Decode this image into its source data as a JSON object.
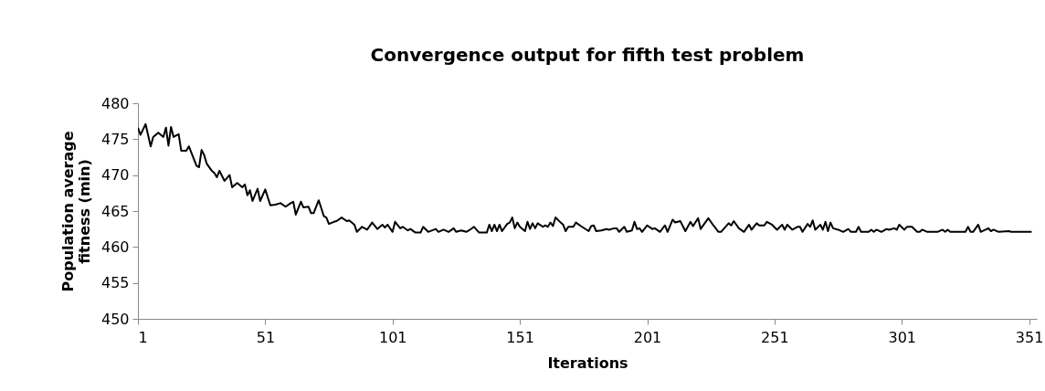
{
  "chart_data": {
    "type": "line",
    "title": "Convergence output for fifth test problem",
    "xlabel": "Iterations",
    "ylabel": "Population average fitness (min)",
    "x": [
      1,
      2,
      4,
      6,
      7,
      9,
      11,
      12,
      13,
      14,
      15,
      17,
      18,
      20,
      21,
      24,
      25,
      26,
      27,
      28,
      30,
      31,
      32,
      33,
      35,
      37,
      38,
      40,
      42,
      43,
      44,
      45,
      46,
      48,
      49,
      51,
      53,
      55,
      57,
      59,
      61,
      62,
      63,
      65,
      66,
      68,
      69,
      70,
      72,
      74,
      75,
      76,
      78,
      79,
      81,
      83,
      84,
      86,
      87,
      89,
      91,
      93,
      95,
      97,
      98,
      99,
      101,
      102,
      104,
      105,
      107,
      108,
      110,
      112,
      113,
      115,
      118,
      119,
      121,
      123,
      125,
      126,
      128,
      130,
      131,
      133,
      135,
      138,
      139,
      140,
      141,
      142,
      143,
      144,
      146,
      147,
      148,
      149,
      150,
      151,
      153,
      154,
      155,
      156,
      157,
      158,
      160,
      161,
      162,
      163,
      164,
      165,
      167,
      168,
      169,
      170,
      172,
      173,
      175,
      178,
      179,
      180,
      181,
      183,
      185,
      186,
      188,
      189,
      190,
      192,
      193,
      195,
      196,
      197,
      198,
      199,
      201,
      203,
      204,
      206,
      208,
      209,
      211,
      212,
      214,
      216,
      218,
      219,
      221,
      222,
      225,
      227,
      229,
      230,
      233,
      234,
      235,
      237,
      239,
      241,
      242,
      244,
      245,
      247,
      248,
      250,
      252,
      254,
      255,
      256,
      258,
      260,
      261,
      262,
      264,
      265,
      266,
      267,
      269,
      270,
      271,
      272,
      273,
      274,
      276,
      278,
      280,
      281,
      283,
      284,
      285,
      288,
      289,
      290,
      291,
      293,
      295,
      296,
      298,
      299,
      300,
      302,
      303,
      305,
      307,
      308,
      309,
      311,
      315,
      317,
      318,
      319,
      320,
      326,
      327,
      328,
      329,
      331,
      332,
      335,
      336,
      337,
      339,
      343,
      344,
      352
    ],
    "values": [
      476.6,
      475.6,
      477.1,
      474.0,
      475.3,
      475.9,
      475.3,
      476.6,
      474.1,
      476.7,
      475.3,
      475.7,
      473.4,
      473.4,
      474.0,
      471.3,
      471.1,
      473.5,
      472.8,
      471.6,
      470.6,
      470.3,
      469.7,
      470.6,
      469.2,
      470.0,
      468.3,
      468.9,
      468.3,
      468.7,
      467.2,
      467.9,
      466.4,
      468.1,
      466.4,
      468.0,
      465.8,
      465.9,
      466.1,
      465.6,
      466.1,
      466.3,
      464.5,
      466.3,
      465.5,
      465.6,
      464.7,
      464.7,
      466.5,
      464.3,
      464.1,
      463.2,
      463.5,
      463.6,
      464.1,
      463.6,
      463.7,
      463.1,
      462.1,
      462.8,
      462.4,
      463.4,
      462.5,
      463.1,
      462.7,
      463.1,
      462.1,
      463.5,
      462.6,
      462.8,
      462.3,
      462.5,
      462.0,
      462.0,
      462.8,
      462.1,
      462.5,
      462.1,
      462.4,
      462.1,
      462.6,
      462.1,
      462.3,
      462.1,
      462.3,
      462.8,
      462.0,
      462.0,
      463.1,
      462.2,
      463.1,
      462.2,
      463.1,
      462.2,
      463.2,
      463.4,
      464.1,
      462.6,
      463.4,
      462.8,
      462.2,
      463.5,
      462.5,
      463.3,
      462.6,
      463.3,
      462.8,
      463.0,
      462.8,
      463.4,
      462.9,
      464.1,
      463.4,
      463.1,
      462.2,
      462.8,
      462.8,
      463.4,
      462.9,
      462.2,
      462.9,
      463.0,
      462.2,
      462.3,
      462.5,
      462.4,
      462.6,
      462.6,
      462.1,
      462.8,
      462.1,
      462.3,
      463.5,
      462.5,
      462.6,
      462.1,
      463.0,
      462.5,
      462.6,
      462.1,
      463.0,
      462.1,
      463.8,
      463.4,
      463.6,
      462.2,
      463.5,
      462.9,
      464.0,
      462.5,
      464.0,
      463.0,
      462.1,
      462.1,
      463.3,
      463.0,
      463.6,
      462.6,
      462.1,
      463.1,
      462.4,
      463.3,
      463.0,
      463.0,
      463.5,
      463.1,
      462.4,
      463.1,
      462.4,
      463.1,
      462.4,
      462.8,
      462.8,
      462.1,
      463.2,
      462.8,
      463.7,
      462.4,
      463.1,
      462.4,
      463.5,
      462.2,
      463.4,
      462.6,
      462.4,
      462.1,
      462.5,
      462.1,
      462.1,
      462.8,
      462.1,
      462.1,
      462.4,
      462.1,
      462.4,
      462.1,
      462.5,
      462.4,
      462.6,
      462.4,
      463.1,
      462.4,
      462.8,
      462.8,
      462.1,
      462.1,
      462.4,
      462.1,
      462.1,
      462.4,
      462.1,
      462.4,
      462.1,
      462.1,
      462.8,
      462.1,
      462.1,
      463.1,
      462.1,
      462.6,
      462.2,
      462.4,
      462.1,
      462.2,
      462.1,
      462.1
    ],
    "color": "#000000",
    "line_style": "solid",
    "marker": "none",
    "xlim": [
      1,
      354
    ],
    "xticks": [
      1,
      51,
      101,
      151,
      201,
      251,
      301,
      351
    ],
    "ylim": [
      450,
      480
    ],
    "yticks": [
      450,
      455,
      460,
      465,
      470,
      475,
      480
    ],
    "grid": false,
    "legend": false
  }
}
